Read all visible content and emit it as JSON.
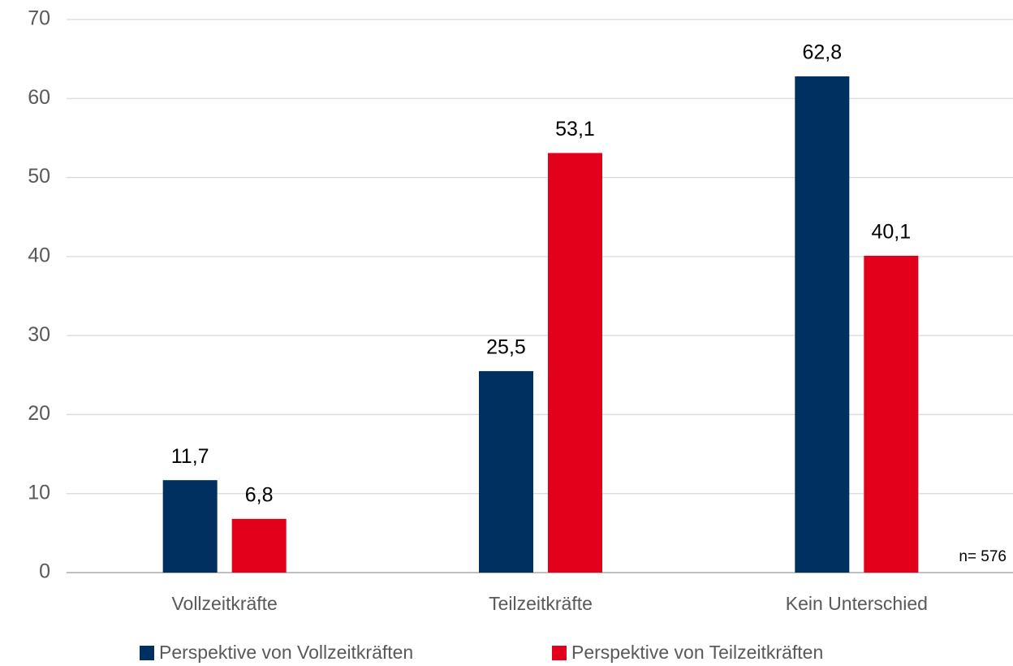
{
  "chart_data": {
    "type": "bar",
    "categories": [
      "Vollzeitkräfte",
      "Teilzeitkräfte",
      "Kein Unterschied"
    ],
    "series": [
      {
        "name": "Perspektive von Vollzeitkräften",
        "color": "#003060",
        "values": [
          11.7,
          25.5,
          62.8
        ],
        "value_labels": [
          "11,7",
          "25,5",
          "62,8"
        ]
      },
      {
        "name": "Perspektive von Teilzeitkräften",
        "color": "#e2001a",
        "values": [
          6.8,
          53.1,
          40.1
        ],
        "value_labels": [
          "6,8",
          "53,1",
          "40,1"
        ]
      }
    ],
    "ylim": [
      0,
      70
    ],
    "yticks": [
      0,
      10,
      20,
      30,
      40,
      50,
      60,
      70
    ],
    "grid": true,
    "annotation": "n= 576"
  }
}
